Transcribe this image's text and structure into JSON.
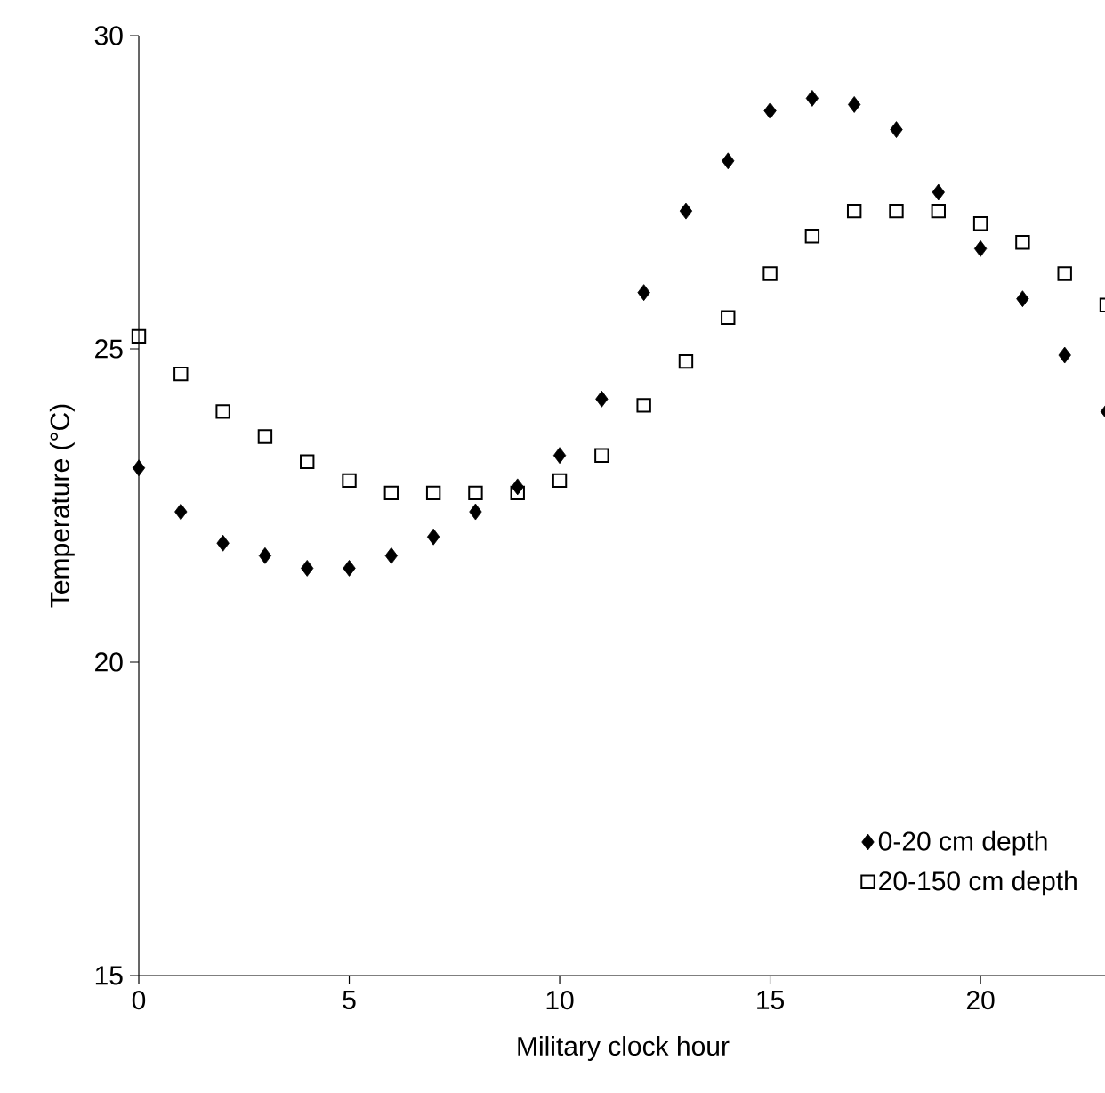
{
  "chart_data": {
    "type": "scatter",
    "xlabel": "Military clock hour",
    "ylabel": "Temperature (°C)",
    "x": [
      0,
      1,
      2,
      3,
      4,
      5,
      6,
      7,
      8,
      9,
      10,
      11,
      12,
      13,
      14,
      15,
      16,
      17,
      18,
      19,
      20,
      21,
      22,
      23
    ],
    "series": [
      {
        "name": "0-20 cm depth",
        "color": "#000000",
        "marker": "diamond",
        "values": [
          23.1,
          22.4,
          21.9,
          21.7,
          21.5,
          21.5,
          21.7,
          22.0,
          22.4,
          22.8,
          23.3,
          24.2,
          25.9,
          27.2,
          28.0,
          28.8,
          29.0,
          28.9,
          28.5,
          27.5,
          26.6,
          25.8,
          24.9,
          24.0
        ]
      },
      {
        "name": "20-150 cm depth",
        "color": "#000000",
        "marker": "square",
        "values": [
          25.2,
          24.6,
          24.0,
          23.6,
          23.2,
          22.9,
          22.7,
          22.7,
          22.7,
          22.7,
          22.9,
          23.3,
          24.1,
          24.8,
          25.5,
          26.2,
          26.8,
          27.2,
          27.2,
          27.2,
          27.0,
          26.7,
          26.2,
          25.7
        ]
      }
    ],
    "xlim": [
      0,
      23
    ],
    "ylim": [
      15,
      30
    ],
    "xticks": [
      0,
      5,
      10,
      15,
      20
    ],
    "yticks": [
      15,
      20,
      25,
      30
    ],
    "grid": false,
    "legend": "bottom right"
  }
}
